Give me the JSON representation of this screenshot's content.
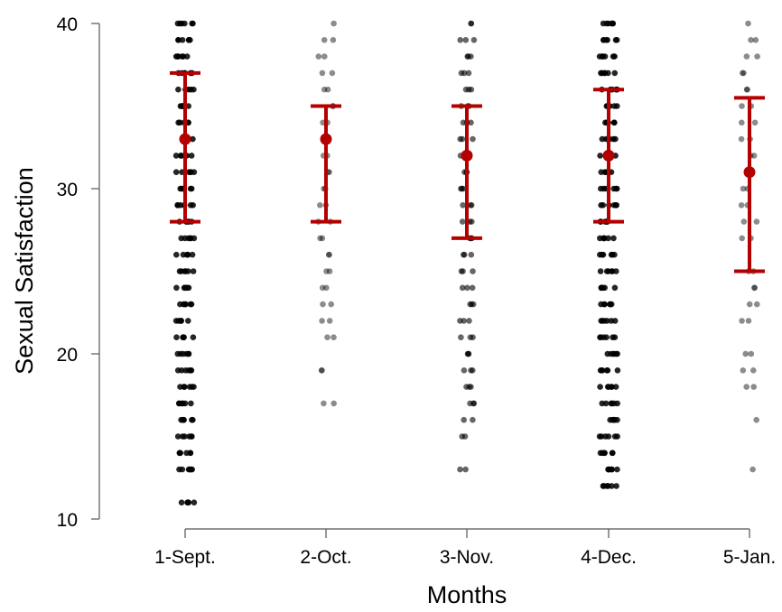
{
  "chart_data": {
    "type": "scatter",
    "title": "",
    "xlabel": "Months",
    "ylabel": "Sexual Satisfaction",
    "categories": [
      "1-Sept.",
      "2-Oct.",
      "3-Nov.",
      "4-Dec.",
      "5-Jan."
    ],
    "ylim": [
      10,
      40
    ],
    "yticks": [
      10,
      20,
      30,
      40
    ],
    "grid": false,
    "legend": "none",
    "point_color": "#000000",
    "summary_color": "#b30000",
    "summary": [
      {
        "category": "1-Sept.",
        "mean": 33,
        "lower": 28,
        "upper": 37
      },
      {
        "category": "2-Oct.",
        "mean": 33,
        "lower": 28,
        "upper": 35
      },
      {
        "category": "3-Nov.",
        "mean": 32,
        "lower": 27,
        "upper": 35
      },
      {
        "category": "4-Dec.",
        "mean": 32,
        "lower": 28,
        "upper": 36
      },
      {
        "category": "5-Jan.",
        "mean": 31,
        "lower": 25,
        "upper": 35.5
      }
    ],
    "points": [
      {
        "category": "1-Sept.",
        "density": "high",
        "values": [
          11,
          13,
          14,
          15,
          16,
          17,
          18,
          19,
          20,
          21,
          22,
          23,
          24,
          25,
          26,
          27,
          28,
          29,
          30,
          31,
          32,
          33,
          34,
          35,
          36,
          37,
          38,
          39,
          40
        ]
      },
      {
        "category": "2-Oct.",
        "density": "low",
        "values": [
          17,
          19,
          21,
          22,
          23,
          24,
          25,
          26,
          27,
          28,
          29,
          30,
          31,
          32,
          33,
          34,
          35,
          36,
          37,
          38,
          39,
          40
        ]
      },
      {
        "category": "3-Nov.",
        "density": "medium",
        "values": [
          13,
          15,
          16,
          17,
          18,
          19,
          20,
          21,
          22,
          23,
          24,
          25,
          26,
          27,
          28,
          29,
          30,
          31,
          32,
          33,
          34,
          35,
          36,
          37,
          38,
          39,
          40
        ]
      },
      {
        "category": "4-Dec.",
        "density": "high",
        "values": [
          12,
          13,
          14,
          15,
          16,
          17,
          18,
          19,
          20,
          21,
          22,
          23,
          24,
          25,
          26,
          27,
          28,
          29,
          30,
          31,
          32,
          33,
          34,
          35,
          36,
          37,
          38,
          39,
          40
        ]
      },
      {
        "category": "5-Jan.",
        "density": "low",
        "values": [
          13,
          16,
          18,
          19,
          20,
          22,
          23,
          24,
          25,
          27,
          28,
          29,
          30,
          31,
          32,
          33,
          34,
          35,
          36,
          37,
          38,
          39,
          40
        ]
      }
    ]
  }
}
